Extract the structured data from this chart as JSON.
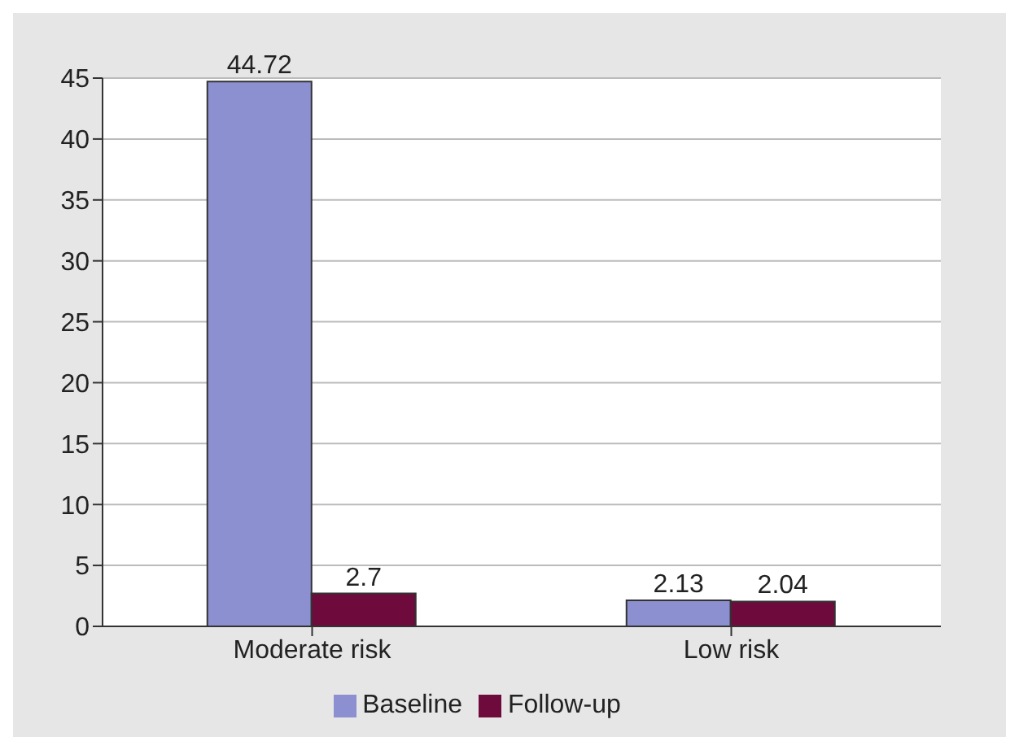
{
  "chart_data": {
    "type": "bar",
    "categories": [
      "Moderate risk",
      "Low risk"
    ],
    "series": [
      {
        "name": "Baseline",
        "color": "#8c8fd0",
        "values": [
          44.72,
          2.13
        ]
      },
      {
        "name": "Follow-up",
        "color": "#6e0a3c",
        "values": [
          2.7,
          2.04
        ]
      }
    ],
    "ylim": [
      0,
      45
    ],
    "yticks": [
      0,
      5,
      10,
      15,
      20,
      25,
      30,
      35,
      40,
      45
    ],
    "grid": "y",
    "data_labels": true,
    "legend": "bottom"
  }
}
